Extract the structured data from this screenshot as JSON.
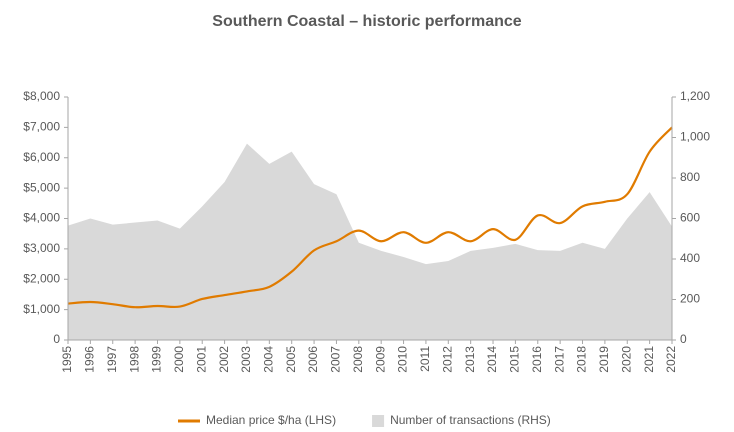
{
  "chart_data": {
    "type": "line",
    "title": "Southern Coastal – historic performance",
    "categories": [
      "1995",
      "1996",
      "1997",
      "1998",
      "1999",
      "2000",
      "2001",
      "2002",
      "2003",
      "2004",
      "2005",
      "2006",
      "2007",
      "2008",
      "2009",
      "2010",
      "2011",
      "2012",
      "2013",
      "2014",
      "2015",
      "2016",
      "2017",
      "2018",
      "2019",
      "2020",
      "2021",
      "2022"
    ],
    "series": [
      {
        "name": "Median price $/ha (LHS)",
        "color": "#e07b00",
        "type": "line",
        "axis": "y",
        "values": [
          1200,
          1250,
          1180,
          1080,
          1120,
          1100,
          1350,
          1480,
          1600,
          1750,
          2250,
          2950,
          3250,
          3600,
          3250,
          3550,
          3200,
          3550,
          3250,
          3650,
          3300,
          4100,
          3850,
          4400,
          4550,
          4800,
          6200,
          7000
        ]
      },
      {
        "name": "Number of transactions (RHS)",
        "color": "#d9d9d9",
        "type": "area",
        "axis": "y2",
        "values": [
          565,
          600,
          570,
          580,
          590,
          550,
          660,
          780,
          970,
          870,
          930,
          770,
          720,
          480,
          440,
          410,
          375,
          390,
          440,
          455,
          475,
          444,
          440,
          480,
          450,
          600,
          730,
          560
        ]
      }
    ],
    "ylim": [
      0,
      8000
    ],
    "yticks": [
      0,
      {
        "value": 1000,
        "label": "$1,000"
      },
      {
        "value": 2000,
        "label": "$2,000"
      },
      {
        "value": 3000,
        "label": "$3,000"
      },
      {
        "value": 4000,
        "label": "$4,000"
      },
      {
        "value": 5000,
        "label": "$5,000"
      },
      {
        "value": 6000,
        "label": "$6,000"
      },
      {
        "value": 7000,
        "label": "$7,000"
      },
      {
        "value": 8000,
        "label": "$8,000"
      }
    ],
    "y2lim": [
      0,
      1200
    ],
    "y2ticks": [
      0,
      200,
      400,
      600,
      800,
      {
        "value": 1000,
        "label": "1,000"
      },
      {
        "value": 1200,
        "label": "1,200"
      }
    ],
    "grid": false,
    "legend": "bottom"
  }
}
